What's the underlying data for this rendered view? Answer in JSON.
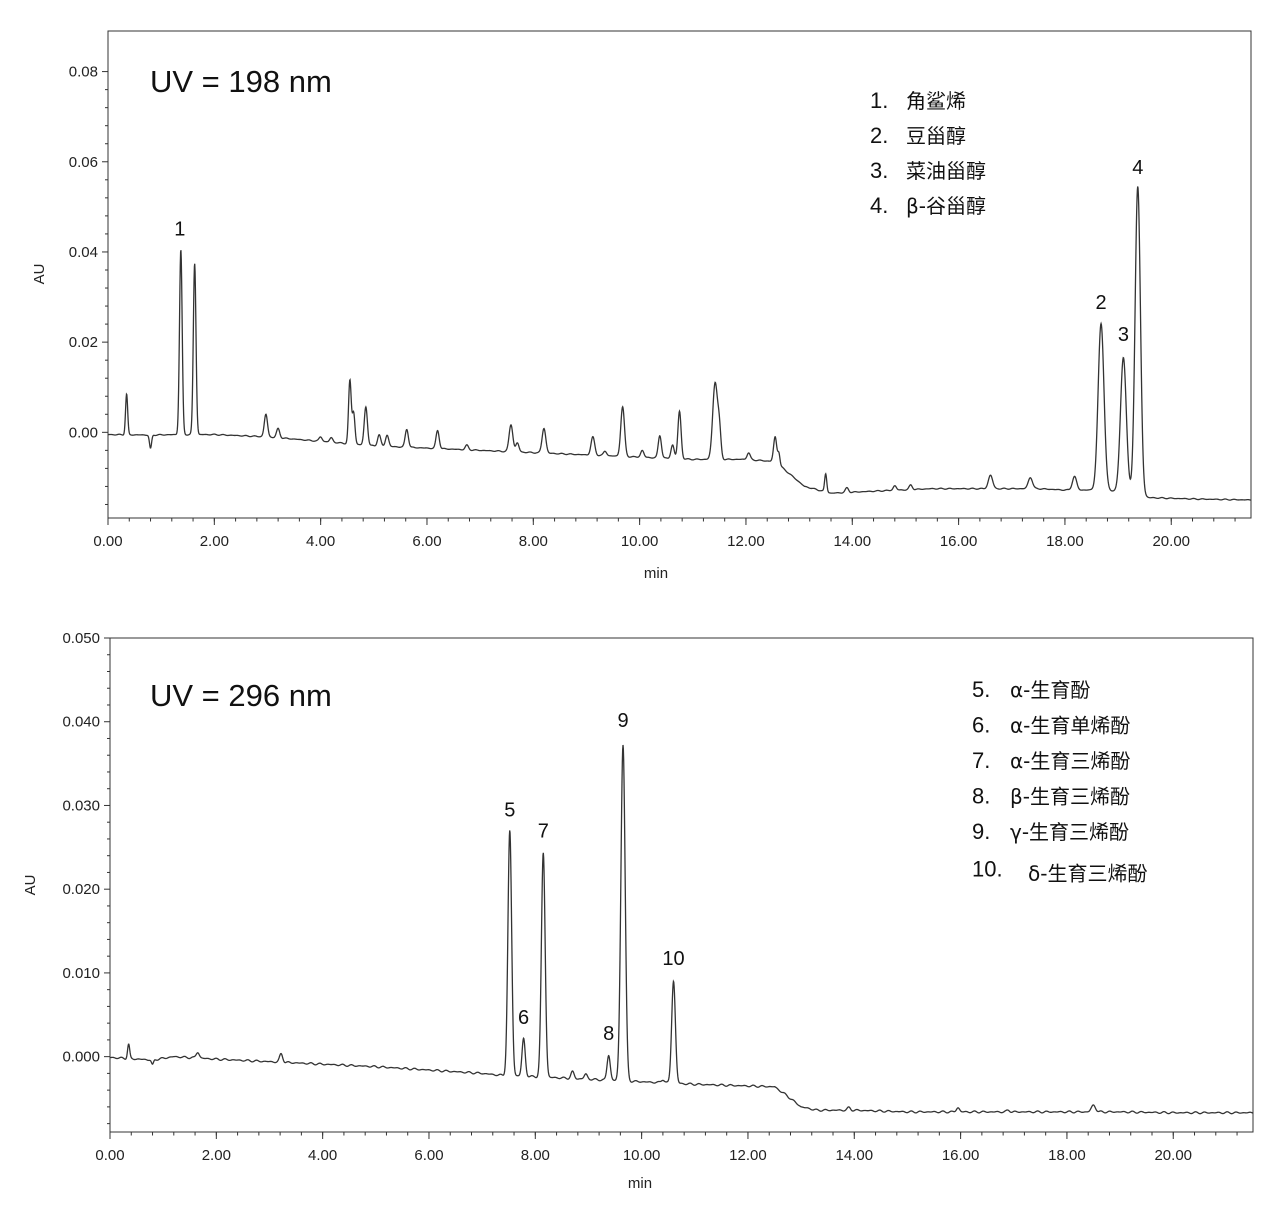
{
  "chart_data": [
    {
      "type": "line",
      "title": "UV = 198 nm",
      "xlabel": "min",
      "ylabel": "AU",
      "xlim": [
        0,
        21.5
      ],
      "ylim": [
        -0.019,
        0.089
      ],
      "x_ticks": [
        "0.00",
        "2.00",
        "4.00",
        "6.00",
        "8.00",
        "10.00",
        "12.00",
        "14.00",
        "16.00",
        "18.00",
        "20.00"
      ],
      "y_ticks": [
        "0.00",
        "0.02",
        "0.04",
        "0.06",
        "0.08"
      ],
      "grid": false,
      "legend_position": "top-right",
      "legend": [
        {
          "num": "1.",
          "name": "角鲨烯"
        },
        {
          "num": "2.",
          "name": "豆甾醇"
        },
        {
          "num": "3.",
          "name": "菜油甾醇"
        },
        {
          "num": "4.",
          "name": "β-谷甾醇"
        }
      ],
      "peak_labels": [
        {
          "label": "1",
          "x": 1.35,
          "y": 0.0405
        },
        {
          "label": "2",
          "x": 18.68,
          "y": 0.0242
        },
        {
          "label": "3",
          "x": 19.1,
          "y": 0.0172
        },
        {
          "label": "4",
          "x": 19.37,
          "y": 0.0542
        }
      ],
      "baseline": [
        [
          0,
          -0.0005
        ],
        [
          0.8,
          -0.0006
        ],
        [
          1.3,
          -0.0005
        ],
        [
          2.0,
          -0.0005
        ],
        [
          3.0,
          -0.001
        ],
        [
          4.0,
          -0.002
        ],
        [
          5.0,
          -0.003
        ],
        [
          6.0,
          -0.0035
        ],
        [
          7.0,
          -0.004
        ],
        [
          8.0,
          -0.0045
        ],
        [
          9.0,
          -0.005
        ],
        [
          10.0,
          -0.0055
        ],
        [
          11.0,
          -0.006
        ],
        [
          12.0,
          -0.006
        ],
        [
          12.55,
          -0.0065
        ],
        [
          12.8,
          -0.009
        ],
        [
          13.1,
          -0.012
        ],
        [
          13.6,
          -0.0135
        ],
        [
          14.5,
          -0.013
        ],
        [
          15.5,
          -0.0125
        ],
        [
          16.5,
          -0.0125
        ],
        [
          17.5,
          -0.0125
        ],
        [
          18.0,
          -0.0128
        ],
        [
          18.5,
          -0.0128
        ],
        [
          18.9,
          -0.013
        ],
        [
          19.6,
          -0.0145
        ],
        [
          20.5,
          -0.0148
        ],
        [
          21.5,
          -0.015
        ]
      ],
      "peaks": [
        {
          "x": 0.35,
          "h": 0.009,
          "w": 0.02
        },
        {
          "x": 0.8,
          "h": -0.003,
          "w": 0.02
        },
        {
          "x": 1.37,
          "h": 0.041,
          "w": 0.025
        },
        {
          "x": 1.63,
          "h": 0.038,
          "w": 0.025
        },
        {
          "x": 2.97,
          "h": 0.005,
          "w": 0.03
        },
        {
          "x": 3.2,
          "h": 0.002,
          "w": 0.03
        },
        {
          "x": 4.0,
          "h": 0.001,
          "w": 0.03
        },
        {
          "x": 4.2,
          "h": 0.001,
          "w": 0.03
        },
        {
          "x": 4.55,
          "h": 0.014,
          "w": 0.025
        },
        {
          "x": 4.62,
          "h": 0.007,
          "w": 0.025
        },
        {
          "x": 4.85,
          "h": 0.0085,
          "w": 0.03
        },
        {
          "x": 5.1,
          "h": 0.0025,
          "w": 0.03
        },
        {
          "x": 5.25,
          "h": 0.0025,
          "w": 0.03
        },
        {
          "x": 5.62,
          "h": 0.004,
          "w": 0.03
        },
        {
          "x": 6.2,
          "h": 0.004,
          "w": 0.03
        },
        {
          "x": 6.75,
          "h": 0.001,
          "w": 0.03
        },
        {
          "x": 7.58,
          "h": 0.006,
          "w": 0.035
        },
        {
          "x": 7.7,
          "h": 0.002,
          "w": 0.03
        },
        {
          "x": 8.2,
          "h": 0.0055,
          "w": 0.035
        },
        {
          "x": 9.12,
          "h": 0.004,
          "w": 0.035
        },
        {
          "x": 9.35,
          "h": 0.001,
          "w": 0.03
        },
        {
          "x": 9.68,
          "h": 0.011,
          "w": 0.035
        },
        {
          "x": 10.05,
          "h": 0.0015,
          "w": 0.03
        },
        {
          "x": 10.38,
          "h": 0.005,
          "w": 0.03
        },
        {
          "x": 10.62,
          "h": 0.003,
          "w": 0.03
        },
        {
          "x": 10.75,
          "h": 0.0105,
          "w": 0.03
        },
        {
          "x": 11.42,
          "h": 0.017,
          "w": 0.045
        },
        {
          "x": 11.5,
          "h": 0.006,
          "w": 0.03
        },
        {
          "x": 12.05,
          "h": 0.0015,
          "w": 0.03
        },
        {
          "x": 12.55,
          "h": 0.0055,
          "w": 0.03
        },
        {
          "x": 12.62,
          "h": 0.0025,
          "w": 0.02
        },
        {
          "x": 13.5,
          "h": 0.004,
          "w": 0.02
        },
        {
          "x": 13.9,
          "h": 0.001,
          "w": 0.03
        },
        {
          "x": 14.8,
          "h": 0.001,
          "w": 0.03
        },
        {
          "x": 15.1,
          "h": 0.001,
          "w": 0.03
        },
        {
          "x": 16.6,
          "h": 0.003,
          "w": 0.04
        },
        {
          "x": 17.35,
          "h": 0.0025,
          "w": 0.04
        },
        {
          "x": 18.18,
          "h": 0.003,
          "w": 0.04
        },
        {
          "x": 18.68,
          "h": 0.037,
          "w": 0.055
        },
        {
          "x": 19.1,
          "h": 0.03,
          "w": 0.055
        },
        {
          "x": 19.37,
          "h": 0.0685,
          "w": 0.05
        }
      ]
    },
    {
      "type": "line",
      "title": "UV = 296 nm",
      "xlabel": "min",
      "ylabel": "AU",
      "xlim": [
        0,
        21.5
      ],
      "ylim": [
        -0.009,
        0.05
      ],
      "x_ticks": [
        "0.00",
        "2.00",
        "4.00",
        "6.00",
        "8.00",
        "10.00",
        "12.00",
        "14.00",
        "16.00",
        "18.00",
        "20.00"
      ],
      "y_ticks": [
        "0.000",
        "0.010",
        "0.020",
        "0.030",
        "0.040",
        "0.050"
      ],
      "grid": false,
      "legend_position": "top-right",
      "legend": [
        {
          "num": "5.",
          "name": "α-生育酚"
        },
        {
          "num": "6.",
          "name": "α-生育单烯酚"
        },
        {
          "num": "7.",
          "name": "α-生育三烯酚"
        },
        {
          "num": "8.",
          "name": "β-生育三烯酚"
        },
        {
          "num": "9.",
          "name": "γ-生育三烯酚"
        },
        {
          "num": "10.",
          "name": "δ-生育三烯酚"
        }
      ],
      "peak_labels": [
        {
          "label": "5",
          "x": 7.52,
          "y": 0.027
        },
        {
          "label": "6",
          "x": 7.78,
          "y": 0.0022
        },
        {
          "label": "7",
          "x": 8.15,
          "y": 0.0245
        },
        {
          "label": "8",
          "x": 9.38,
          "y": 0.0003
        },
        {
          "label": "9",
          "x": 9.65,
          "y": 0.0377
        },
        {
          "label": "10",
          "x": 10.6,
          "y": 0.0093
        }
      ],
      "baseline": [
        [
          0,
          -0.0001
        ],
        [
          0.8,
          -0.0004
        ],
        [
          1.2,
          0.0
        ],
        [
          2.0,
          -0.0003
        ],
        [
          3.0,
          -0.0006
        ],
        [
          4.0,
          -0.0009
        ],
        [
          5.0,
          -0.0012
        ],
        [
          6.0,
          -0.0016
        ],
        [
          7.0,
          -0.002
        ],
        [
          7.3,
          -0.0022
        ],
        [
          8.0,
          -0.0024
        ],
        [
          9.0,
          -0.0027
        ],
        [
          10.0,
          -0.003
        ],
        [
          11.0,
          -0.0033
        ],
        [
          12.0,
          -0.0035
        ],
        [
          12.5,
          -0.0036
        ],
        [
          12.7,
          -0.0045
        ],
        [
          13.0,
          -0.006
        ],
        [
          13.3,
          -0.0064
        ],
        [
          14.0,
          -0.0064
        ],
        [
          15.0,
          -0.0066
        ],
        [
          16.0,
          -0.0066
        ],
        [
          17.0,
          -0.0066
        ],
        [
          18.0,
          -0.0066
        ],
        [
          19.0,
          -0.0066
        ],
        [
          20.0,
          -0.0067
        ],
        [
          21.5,
          -0.0067
        ]
      ],
      "peaks": [
        {
          "x": 0.35,
          "h": 0.0017,
          "w": 0.02
        },
        {
          "x": 0.8,
          "h": -0.0006,
          "w": 0.02
        },
        {
          "x": 1.65,
          "h": 0.0007,
          "w": 0.03
        },
        {
          "x": 3.22,
          "h": 0.001,
          "w": 0.03
        },
        {
          "x": 7.52,
          "h": 0.0292,
          "w": 0.035
        },
        {
          "x": 7.78,
          "h": 0.0045,
          "w": 0.03
        },
        {
          "x": 8.15,
          "h": 0.0268,
          "w": 0.035
        },
        {
          "x": 8.7,
          "h": 0.0008,
          "w": 0.03
        },
        {
          "x": 8.95,
          "h": 0.0006,
          "w": 0.03
        },
        {
          "x": 9.38,
          "h": 0.003,
          "w": 0.03
        },
        {
          "x": 9.65,
          "h": 0.0402,
          "w": 0.04
        },
        {
          "x": 10.4,
          "h": 0.0004,
          "w": 0.03
        },
        {
          "x": 10.6,
          "h": 0.0122,
          "w": 0.035
        },
        {
          "x": 13.9,
          "h": 0.0003,
          "w": 0.03
        },
        {
          "x": 15.95,
          "h": 0.0005,
          "w": 0.03
        },
        {
          "x": 16.9,
          "h": 0.0002,
          "w": 0.03
        },
        {
          "x": 18.5,
          "h": 0.0008,
          "w": 0.04
        }
      ]
    }
  ]
}
